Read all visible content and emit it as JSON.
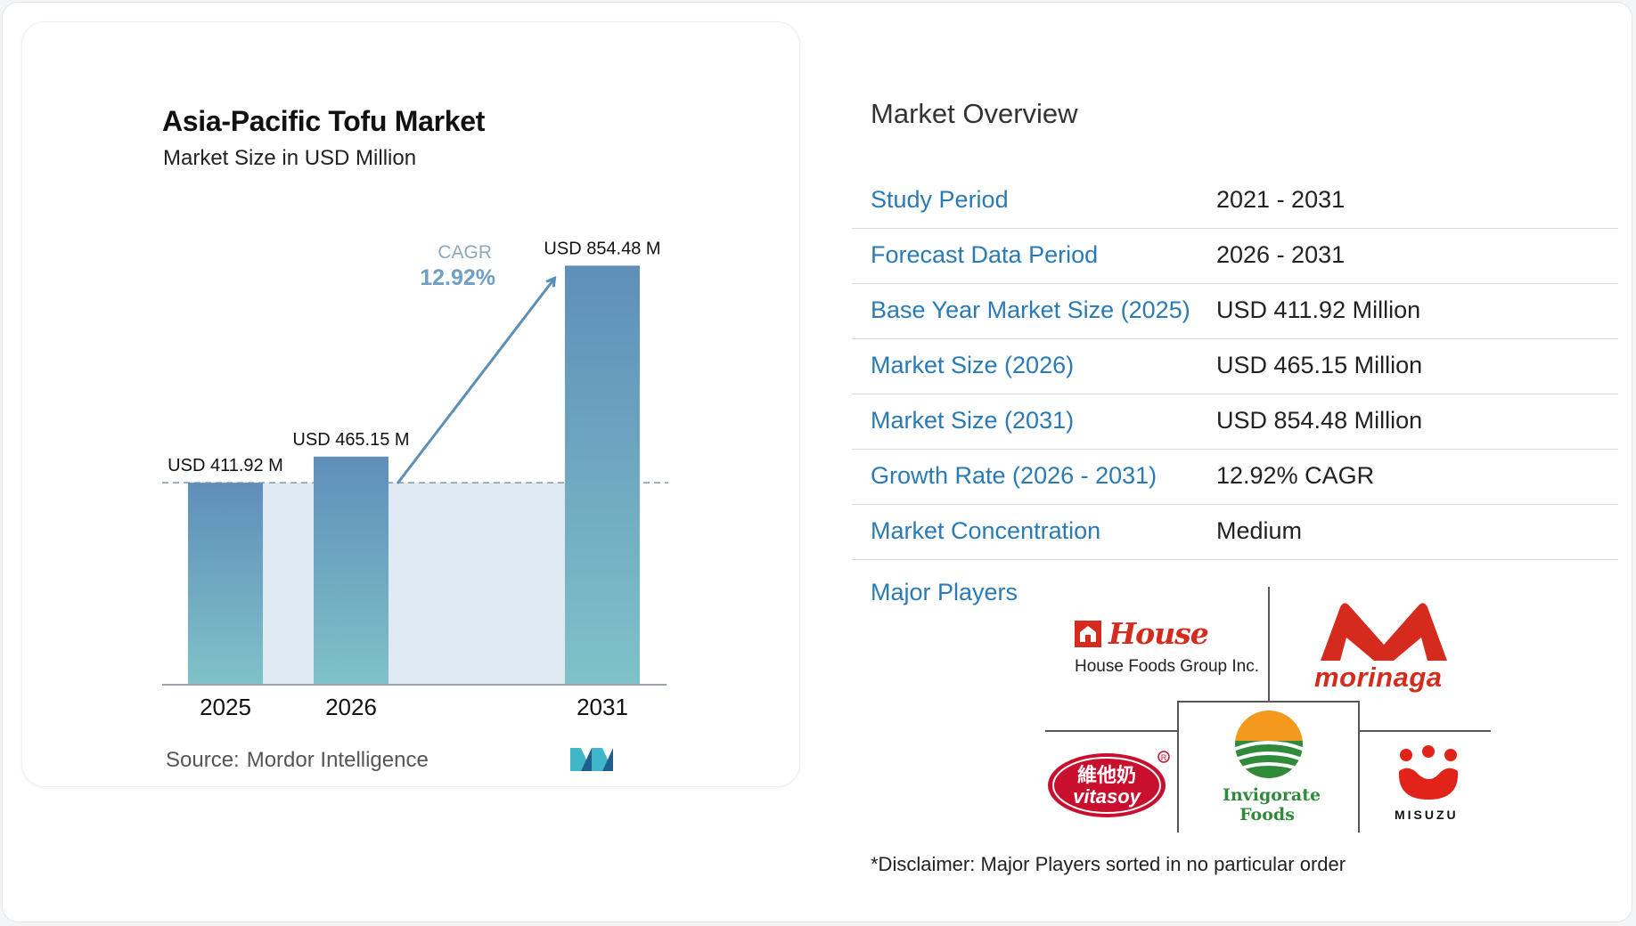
{
  "chart_data": {
    "type": "bar",
    "title": "Asia-Pacific Tofu Market",
    "subtitle": "Market Size in USD Million",
    "categories": [
      "2025",
      "2026",
      "2031"
    ],
    "values": [
      411.92,
      465.15,
      854.48
    ],
    "data_labels": [
      "USD 411.92 M",
      "USD 465.15 M",
      "USD 854.48 M"
    ],
    "ylim": [
      0,
      900
    ],
    "grid": false,
    "annotation": {
      "label": "CAGR",
      "value": "12.92%"
    },
    "bar_colors": {
      "top": "#5f8fba",
      "bottom": "#7fc2c8"
    },
    "baseline_band_color": "#dfe9f2"
  },
  "source": {
    "label": "Source:",
    "name": "Mordor Intelligence"
  },
  "overview": {
    "title": "Market Overview",
    "rows": [
      {
        "label": "Study Period",
        "value": "2021 - 2031"
      },
      {
        "label": "Forecast Data Period",
        "value": "2026 - 2031"
      },
      {
        "label": "Base Year Market Size (2025)",
        "value": "USD 411.92 Million"
      },
      {
        "label": "Market Size (2026)",
        "value": "USD 465.15 Million"
      },
      {
        "label": "Market Size (2031)",
        "value": "USD 854.48 Million"
      },
      {
        "label": "Growth Rate (2026 - 2031)",
        "value": "12.92% CAGR"
      },
      {
        "label": "Market Concentration",
        "value": "Medium"
      }
    ],
    "major_players_label": "Major Players",
    "players": [
      {
        "name": "House Foods Group Inc.",
        "logo_text": "House"
      },
      {
        "name": "morinaga"
      },
      {
        "name": "vitasoy",
        "logo_text": "維他奶"
      },
      {
        "name": "Invigorate Foods"
      },
      {
        "name": "MISUZU"
      }
    ],
    "disclaimer": "*Disclaimer: Major Players sorted in no particular order"
  },
  "colors": {
    "accent": "#2a7ab5",
    "brand_red": "#d52b1e",
    "green": "#2f8a3a"
  }
}
